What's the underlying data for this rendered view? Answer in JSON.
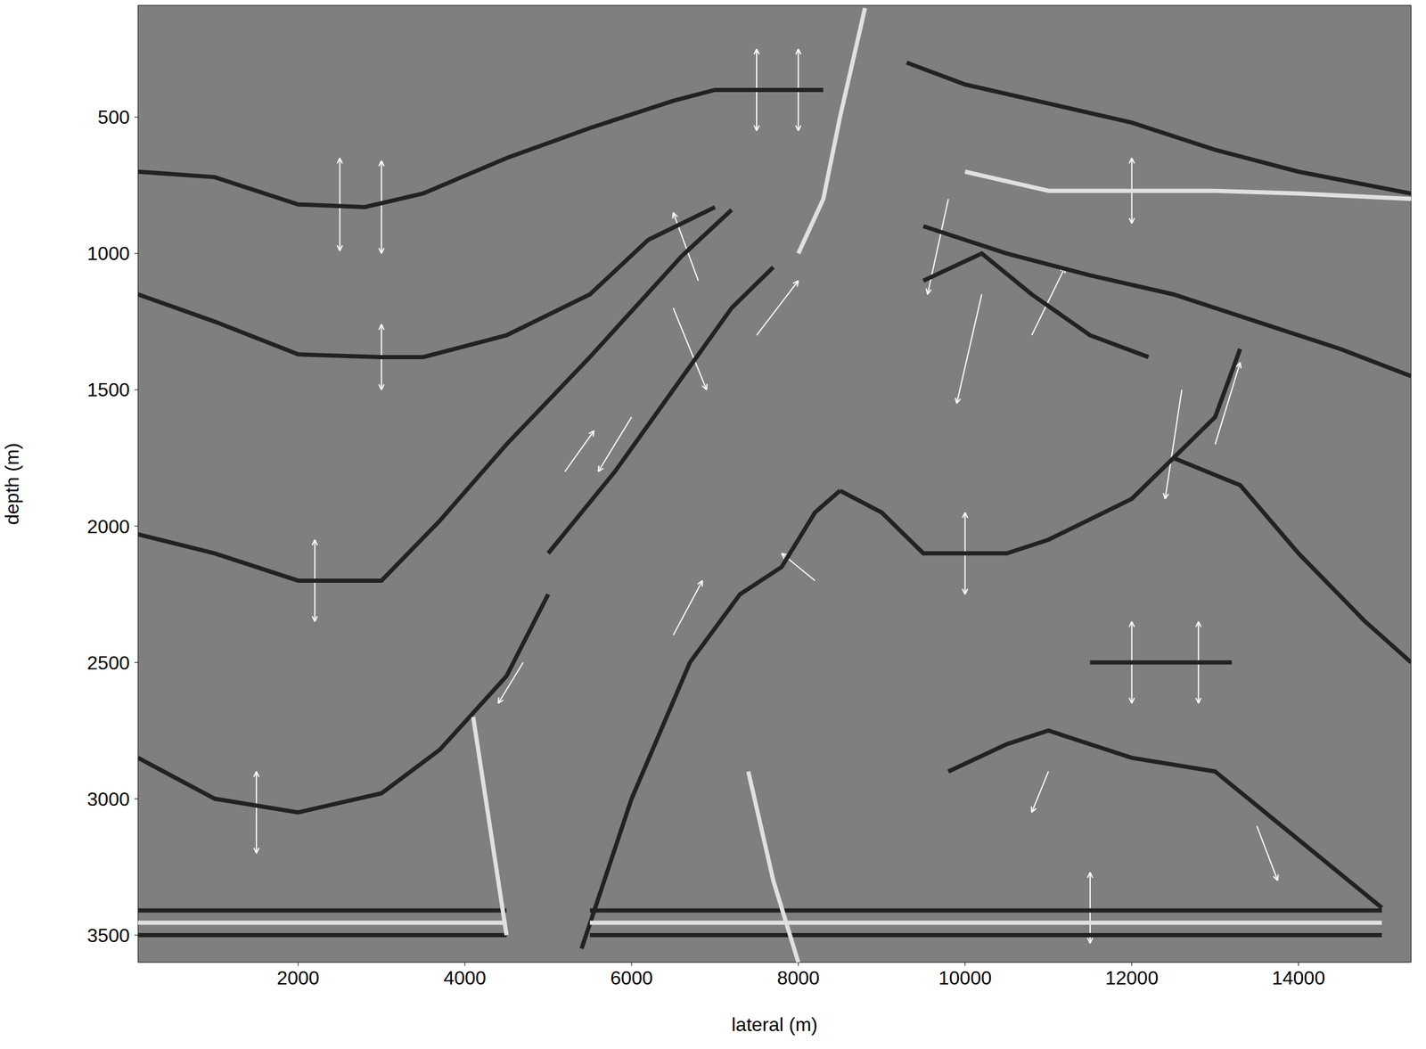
{
  "chart_data": {
    "type": "quiver",
    "x_label": "lateral (m)",
    "y_label": "depth (m)",
    "xlim": [
      80,
      15350
    ],
    "ylim": [
      90,
      3600
    ],
    "xticks": [
      2000,
      4000,
      6000,
      8000,
      10000,
      12000,
      14000
    ],
    "yticks": [
      500,
      1000,
      1500,
      2000,
      2500,
      3000,
      3500
    ],
    "grid": false,
    "log": false,
    "color": "#7f7f7f",
    "reflectors": [
      {
        "color": "#222222",
        "x": [
          80,
          1000,
          2000,
          2800,
          3500,
          4500,
          5500,
          6500,
          7000,
          8300
        ],
        "y": [
          700,
          720,
          820,
          830,
          780,
          650,
          540,
          440,
          400,
          400
        ]
      },
      {
        "color": "#222222",
        "x": [
          9300,
          10000,
          11000,
          12000,
          13000,
          14000,
          15350
        ],
        "y": [
          300,
          380,
          450,
          520,
          620,
          700,
          780
        ]
      },
      {
        "color": "#e0e0e0",
        "x": [
          10000,
          11000,
          12000,
          13000,
          14000,
          15350
        ],
        "y": [
          700,
          770,
          770,
          770,
          780,
          800
        ]
      },
      {
        "color": "#222222",
        "x": [
          9500,
          10500,
          11500,
          12500,
          13500,
          14500,
          15350
        ],
        "y": [
          900,
          1000,
          1080,
          1150,
          1250,
          1350,
          1450
        ]
      },
      {
        "color": "#222222",
        "x": [
          80,
          1000,
          2000,
          3000,
          3500,
          4500,
          5500,
          6200,
          7000
        ],
        "y": [
          1150,
          1250,
          1370,
          1380,
          1380,
          1300,
          1150,
          950,
          830
        ]
      },
      {
        "color": "#222222",
        "x": [
          5000,
          5800,
          6500,
          7200,
          7700
        ],
        "y": [
          2100,
          1800,
          1500,
          1200,
          1050
        ]
      },
      {
        "color": "#222222",
        "x": [
          80,
          1000,
          2000,
          3000,
          3700,
          4500,
          5500,
          6600,
          7200
        ],
        "y": [
          2030,
          2100,
          2200,
          2200,
          1980,
          1700,
          1380,
          1010,
          840
        ]
      },
      {
        "color": "#222222",
        "x": [
          80,
          1000,
          2000,
          3000,
          3700,
          4500,
          5000
        ],
        "y": [
          2850,
          3000,
          3050,
          2980,
          2820,
          2550,
          2250
        ]
      },
      {
        "color": "#222222",
        "x": [
          5400,
          6000,
          6700,
          7300,
          7800,
          8200,
          8500
        ],
        "y": [
          3550,
          3000,
          2500,
          2250,
          2150,
          1950,
          1870
        ]
      },
      {
        "color": "#222222",
        "x": [
          8500,
          9000,
          9500,
          10500,
          11000,
          12000,
          13000,
          13300
        ],
        "y": [
          1870,
          1950,
          2100,
          2100,
          2050,
          1900,
          1600,
          1350
        ]
      },
      {
        "color": "#222222",
        "x": [
          12500,
          13300,
          14000,
          14800,
          15350
        ],
        "y": [
          1750,
          1850,
          2100,
          2350,
          2500
        ]
      },
      {
        "color": "#222222",
        "x": [
          11500,
          13200
        ],
        "y": [
          2500,
          2500
        ]
      },
      {
        "color": "#222222",
        "x": [
          9800,
          10500,
          11000,
          12000,
          13000,
          14000,
          15000
        ],
        "y": [
          2900,
          2800,
          2750,
          2850,
          2900,
          3150,
          3400
        ]
      },
      {
        "color": "#222222",
        "x": [
          80,
          4500
        ],
        "y": [
          3410,
          3410
        ]
      },
      {
        "color": "#e0e0e0",
        "x": [
          80,
          4500
        ],
        "y": [
          3455,
          3455
        ]
      },
      {
        "color": "#222222",
        "x": [
          80,
          4500
        ],
        "y": [
          3500,
          3500
        ]
      },
      {
        "color": "#222222",
        "x": [
          5500,
          15000
        ],
        "y": [
          3410,
          3410
        ]
      },
      {
        "color": "#e0e0e0",
        "x": [
          5500,
          15000
        ],
        "y": [
          3455,
          3455
        ]
      },
      {
        "color": "#222222",
        "x": [
          5500,
          15000
        ],
        "y": [
          3500,
          3500
        ]
      },
      {
        "color": "#e0e0e0",
        "x": [
          8800,
          8500,
          8300,
          8000
        ],
        "y": [
          100,
          500,
          800,
          1000
        ]
      },
      {
        "color": "#e0e0e0",
        "x": [
          7400,
          7700,
          8000
        ],
        "y": [
          2900,
          3300,
          3600
        ]
      },
      {
        "color": "#e0e0e0",
        "x": [
          4100,
          4300,
          4500
        ],
        "y": [
          2700,
          3100,
          3500
        ]
      },
      {
        "color": "#222222",
        "x": [
          9500,
          10200,
          10800,
          11500,
          12200
        ],
        "y": [
          1100,
          1000,
          1150,
          1300,
          1380
        ]
      }
    ],
    "arrows": {
      "x": [
        2500,
        2500,
        3000,
        3000,
        7500,
        7500,
        8000,
        8000,
        3000,
        3000,
        2200,
        2200,
        1500,
        1500,
        12000,
        12000,
        12800,
        12800,
        11500,
        11500,
        10000,
        10000,
        12000,
        12000,
        6500,
        6800,
        7500,
        6000,
        5200,
        10200,
        10800,
        12600,
        13000,
        4700,
        6500,
        8200,
        11000,
        13500,
        9800
      ],
      "y": [
        820,
        820,
        830,
        830,
        400,
        400,
        400,
        400,
        1380,
        1380,
        2200,
        2200,
        3050,
        3050,
        2500,
        2500,
        2500,
        2500,
        3400,
        3400,
        2100,
        2100,
        770,
        770,
        1200,
        1100,
        1300,
        1600,
        1800,
        1150,
        1300,
        1500,
        1700,
        2500,
        2400,
        2200,
        2900,
        3100,
        800
      ],
      "u": [
        0,
        0,
        0,
        0,
        0,
        0,
        0,
        0,
        0,
        0,
        0,
        0,
        0,
        0,
        0,
        0,
        0,
        0,
        0,
        0,
        0,
        0,
        0,
        0,
        400,
        -300,
        500,
        -400,
        350,
        -300,
        400,
        -200,
        300,
        -300,
        350,
        -400,
        -200,
        250,
        -250
      ],
      "v": [
        -170,
        170,
        -170,
        170,
        -150,
        150,
        -150,
        150,
        -120,
        120,
        -150,
        150,
        -150,
        150,
        -150,
        150,
        -150,
        150,
        -130,
        130,
        -150,
        150,
        -120,
        120,
        300,
        -250,
        -200,
        200,
        -150,
        400,
        -250,
        400,
        -300,
        150,
        -200,
        -100,
        150,
        200,
        350
      ]
    }
  }
}
